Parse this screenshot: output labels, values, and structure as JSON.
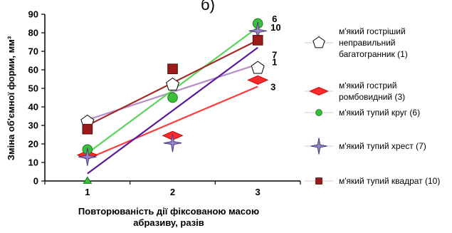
{
  "chart_data": {
    "type": "scatter",
    "top_label": "б)",
    "ylabel": "Зміна об'ємної форми, мм³",
    "xlabel_lines": [
      "Повторюваність дії фіксованою масою",
      "абразиву, разів"
    ],
    "x": [
      1,
      2,
      3
    ],
    "xlim": [
      0.5,
      3.5
    ],
    "ylim": [
      0,
      90
    ],
    "y_ticks": [
      0,
      10,
      20,
      30,
      40,
      50,
      60,
      70,
      80,
      90
    ],
    "x_ticks": [
      1,
      2,
      3
    ],
    "grid": false,
    "legend_position": "right",
    "series": [
      {
        "id": "1",
        "end_label": "1",
        "legend_lines": [
          "м'який гостріший",
          "неправильний",
          "багатогранник (1)"
        ],
        "marker": "pentagon",
        "color": "#ffffff",
        "stroke": "#000000",
        "line_color": "#b58fc9",
        "values": [
          32,
          52,
          61
        ],
        "trend": [
          33,
          48,
          63
        ]
      },
      {
        "id": "3",
        "end_label": "3",
        "legend_lines": [
          "м'який гострий",
          "ромбовидний (3)"
        ],
        "marker": "diamond",
        "color": "#ff2b2b",
        "stroke": "#cc0000",
        "line_color": "#ff3b3b",
        "values": [
          14,
          24.5,
          54.5
        ],
        "trend": [
          12,
          31.5,
          51
        ]
      },
      {
        "id": "6",
        "end_label": "6",
        "legend_lines": [
          "м'який тупий круг (6)"
        ],
        "marker": "circle",
        "color": "#3bbf3b",
        "stroke": "#1a7a1a",
        "line_color": "#5ad45a",
        "values": [
          17,
          45,
          85
        ],
        "trend": [
          15,
          49,
          83
        ]
      },
      {
        "id": "7",
        "end_label": "7",
        "legend_lines": [
          "м'який тупий хрест (7)"
        ],
        "marker": "star",
        "color": "#9a86c4",
        "stroke": "#4a3a80",
        "line_color": "#5a1a9a",
        "values": [
          13,
          20.5,
          81
        ],
        "trend": [
          4,
          38,
          72
        ]
      },
      {
        "id": "10",
        "end_label": "10",
        "legend_lines": [
          "м'який тупий квадрат (10)"
        ],
        "marker": "square",
        "color": "#9b1b1b",
        "stroke": "#5a0a0a",
        "line_color": "#a52a2a",
        "values": [
          28,
          60.5,
          76
        ],
        "trend": [
          30,
          53,
          76
        ]
      }
    ],
    "extra_points": [
      {
        "x": 1,
        "y": 0,
        "marker": "triangle",
        "color": "#3bbf3b"
      }
    ]
  }
}
